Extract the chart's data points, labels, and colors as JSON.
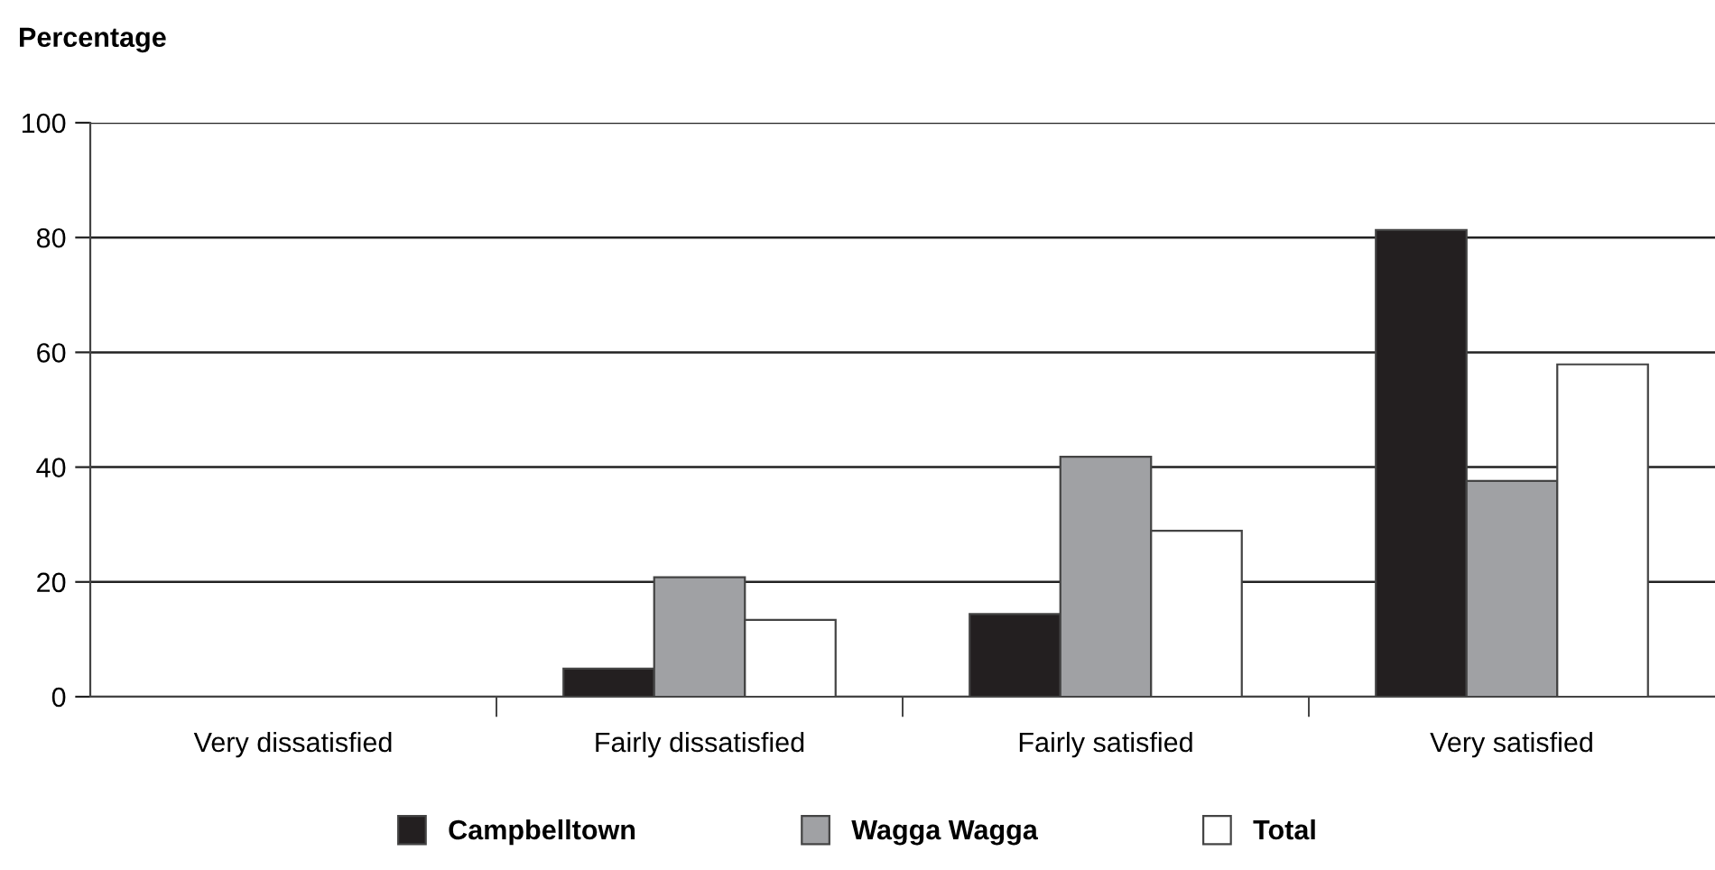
{
  "chart_data": {
    "type": "bar",
    "title": "Percentage",
    "categories": [
      "Very dissatisfied",
      "Fairly dissatisfied",
      "Fairly satisfied",
      "Very satisfied"
    ],
    "series": [
      {
        "name": "Campbelltown",
        "color": "#231f20",
        "values": [
          0,
          4.9,
          14.4,
          81.3
        ]
      },
      {
        "name": "Wagga Wagga",
        "color": "#a0a1a4",
        "values": [
          0,
          20.8,
          41.8,
          37.6
        ]
      },
      {
        "name": "Total",
        "color": "#ffffff",
        "values": [
          0,
          13.4,
          28.9,
          57.9
        ]
      }
    ],
    "ylim": [
      0,
      100
    ],
    "yticks": [
      0,
      20,
      40,
      60,
      80,
      100
    ],
    "grid": "y",
    "legend": "bottom"
  }
}
